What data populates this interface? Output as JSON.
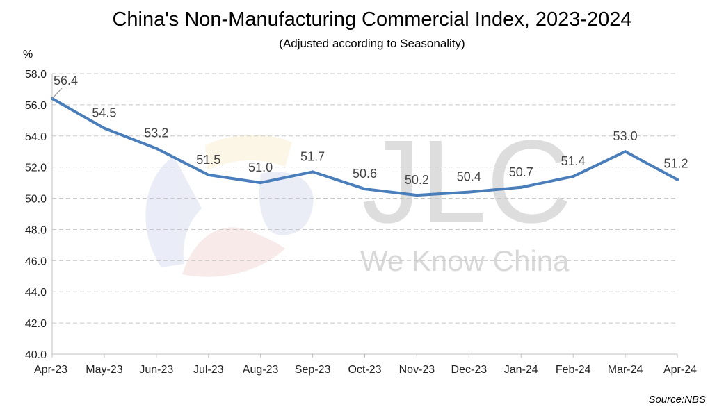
{
  "chart_data": {
    "type": "line",
    "title": "China's Non-Manufacturing Commercial Index, 2023-2024",
    "subtitle": "(Adjusted according to Seasonality)",
    "ylabel": "%",
    "xlabel": "",
    "categories": [
      "Apr-23",
      "May-23",
      "Jun-23",
      "Jul-23",
      "Aug-23",
      "Sep-23",
      "Oct-23",
      "Nov-23",
      "Dec-23",
      "Jan-24",
      "Feb-24",
      "Mar-24",
      "Apr-24"
    ],
    "series": [
      {
        "name": "Non-Manufacturing Commercial Index",
        "values": [
          56.4,
          54.5,
          53.2,
          51.5,
          51.0,
          51.7,
          50.6,
          50.2,
          50.4,
          50.7,
          51.4,
          53.0,
          51.2
        ],
        "color": "#4A7EBB"
      }
    ],
    "ylim": [
      40.0,
      58.0
    ],
    "yticks": [
      "40.0",
      "42.0",
      "44.0",
      "46.0",
      "48.0",
      "50.0",
      "52.0",
      "54.0",
      "56.0",
      "58.0"
    ],
    "grid": true,
    "legend": "none",
    "source": "Source:NBS"
  },
  "watermark": {
    "brand": "JLC",
    "tagline": "We Know China"
  },
  "colors": {
    "line": "#4A7EBB",
    "grid": "#C8C8C8",
    "watermark": "#BBBBBB"
  }
}
